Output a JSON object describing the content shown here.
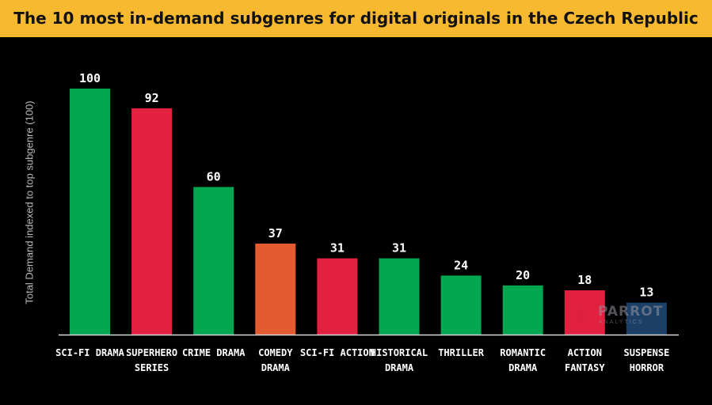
{
  "chart_data": {
    "type": "bar",
    "title": "The 10 most in-demand subgenres for digital originals in the Czech Republic",
    "ylabel": "Total Demand indexed to top subgenre (100)",
    "xlabel": "",
    "ylim": [
      0,
      100
    ],
    "grid": false,
    "categories": [
      [
        "SCI-FI DRAMA"
      ],
      [
        "SUPERHERO",
        "SERIES"
      ],
      [
        "CRIME DRAMA"
      ],
      [
        "COMEDY",
        "DRAMA"
      ],
      [
        "SCI-FI ACTION"
      ],
      [
        "HISTORICAL",
        "DRAMA"
      ],
      [
        "THRILLER"
      ],
      [
        "ROMANTIC",
        "DRAMA"
      ],
      [
        "ACTION",
        "FANTASY"
      ],
      [
        "SUSPENSE",
        "HORROR"
      ]
    ],
    "values": [
      100,
      92,
      60,
      37,
      31,
      31,
      24,
      20,
      18,
      13
    ],
    "colors": [
      "#00a650",
      "#e1213f",
      "#00a650",
      "#e35b30",
      "#e1213f",
      "#00a650",
      "#00a650",
      "#00a650",
      "#e1213f",
      "#1c3f66"
    ]
  },
  "watermark": {
    "text": "PARROT",
    "subtext": "ANALYTICS"
  }
}
